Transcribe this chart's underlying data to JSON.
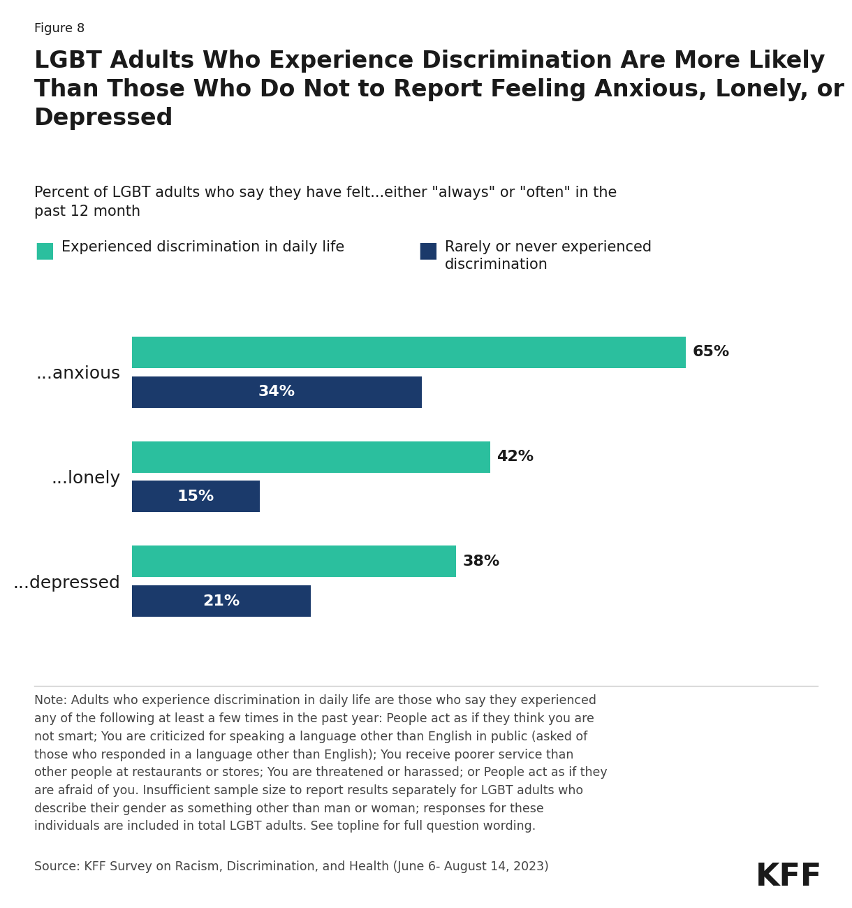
{
  "figure_label": "Figure 8",
  "title": "LGBT Adults Who Experience Discrimination Are More Likely\nThan Those Who Do Not to Report Feeling Anxious, Lonely, or\nDepressed",
  "subtitle": "Percent of LGBT adults who say they have felt...either \"always\" or \"often\" in the\npast 12 month",
  "legend_label_1": "Experienced discrimination in daily life",
  "legend_label_2": "Rarely or never experienced\ndiscrimination",
  "legend_color_1": "#2bbf9e",
  "legend_color_2": "#1b3a6b",
  "categories": [
    "...anxious",
    "...lonely",
    "...depressed"
  ],
  "experienced": [
    65,
    42,
    38
  ],
  "rarely": [
    34,
    15,
    21
  ],
  "experienced_color": "#2bbf9e",
  "rarely_color": "#1b3a6b",
  "note_text": "Note: Adults who experience discrimination in daily life are those who say they experienced\nany of the following at least a few times in the past year: People act as if they think you are\nnot smart; You are criticized for speaking a language other than English in public (asked of\nthose who responded in a language other than English); You receive poorer service than\nother people at restaurants or stores; You are threatened or harassed; or People act as if they\nare afraid of you. Insufficient sample size to report results separately for LGBT adults who\ndescribe their gender as something other than man or woman; responses for these\nindividuals are included in total LGBT adults. See topline for full question wording.",
  "source_text": "Source: KFF Survey on Racism, Discrimination, and Health (June 6- August 14, 2023)",
  "background_color": "#ffffff",
  "text_color": "#1a1a1a",
  "note_color": "#444444"
}
